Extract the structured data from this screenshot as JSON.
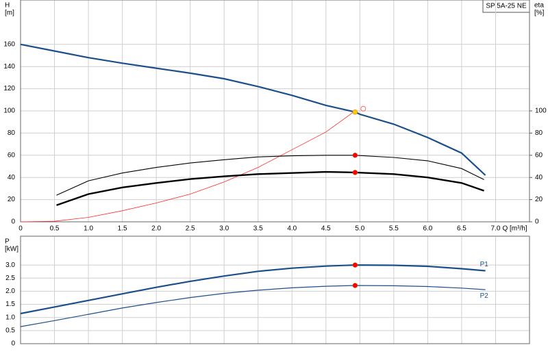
{
  "chart_data": [
    {
      "type": "line",
      "ylabel": [
        "H",
        "[m]"
      ],
      "y2label": [
        "eta",
        "[%]"
      ],
      "xlabel": "Q [m³/h]",
      "annotation": "SP 5A-25 NE",
      "xlim": [
        0,
        7.5
      ],
      "ylim": [
        0,
        200
      ],
      "y2lim": [
        0,
        200
      ],
      "xticks": [
        0,
        0.5,
        {
          "value": 1,
          "label": "1.0"
        },
        1.5,
        {
          "value": 2,
          "label": "2.0"
        },
        2.5,
        {
          "value": 3,
          "label": "3.0"
        },
        3.5,
        {
          "value": 4,
          "label": "4.0"
        },
        4.5,
        {
          "value": 5,
          "label": "5.0"
        },
        5.5,
        {
          "value": 6,
          "label": "6.0"
        },
        6.5,
        {
          "value": 7,
          "label": "7.0"
        }
      ],
      "yticks": [
        0,
        20,
        40,
        60,
        80,
        100,
        120,
        140,
        160
      ],
      "y2ticks": [
        0,
        20,
        40,
        60,
        80,
        100
      ],
      "grid": true,
      "series": [
        {
          "color": "#1a4f8b",
          "width": 2.2,
          "x": [
            0,
            0.5,
            1.0,
            1.5,
            2.0,
            2.5,
            3.0,
            3.5,
            4.0,
            4.5,
            4.93,
            5.0,
            5.5,
            6.0,
            6.5,
            6.85
          ],
          "values": [
            160,
            154,
            148,
            143,
            138.5,
            134,
            129,
            122,
            114,
            105,
            99,
            97,
            88,
            76,
            62,
            42
          ]
        },
        {
          "color": "#ff2a2a",
          "width": 0.8,
          "x": [
            0,
            0.5,
            1.0,
            1.5,
            2.0,
            2.5,
            3.0,
            3.5,
            4.0,
            4.5,
            4.93
          ],
          "values": [
            0,
            0.5,
            4,
            10,
            17,
            25,
            36,
            49,
            65,
            81,
            100
          ]
        },
        {
          "color": "#000000",
          "width": 1.1,
          "axis": "y2",
          "x": [
            0.53,
            1.0,
            1.5,
            2.0,
            2.5,
            3.0,
            3.5,
            4.0,
            4.5,
            4.93,
            5.5,
            6.0,
            6.5,
            6.83
          ],
          "values": [
            24,
            37,
            44,
            49,
            53,
            56,
            58.5,
            59.5,
            60,
            60,
            58,
            55,
            48,
            38
          ]
        },
        {
          "color": "#000000",
          "width": 2.4,
          "axis": "y2",
          "x": [
            0.53,
            1.0,
            1.5,
            2.0,
            2.5,
            3.0,
            3.5,
            4.0,
            4.5,
            4.93,
            5.5,
            6.0,
            6.5,
            6.83
          ],
          "values": [
            15,
            25,
            31,
            35,
            38.5,
            41,
            43,
            44,
            45,
            44.5,
            43,
            40,
            35,
            28
          ]
        }
      ],
      "points": [
        {
          "x": 4.93,
          "y": 99,
          "color": "#ffcc00"
        },
        {
          "x": 5.05,
          "y": 102,
          "color": "none"
        },
        {
          "x": 4.93,
          "y": 60,
          "color": "#ff0000",
          "axis": "y2"
        },
        {
          "x": 4.93,
          "y": 44.5,
          "color": "#ff0000",
          "axis": "y2"
        }
      ]
    },
    {
      "type": "line",
      "ylabel": [
        "P",
        "[kW]"
      ],
      "xlim": [
        0,
        7.5
      ],
      "ylim": [
        0,
        4.1
      ],
      "xticks": [
        0,
        0.5,
        1,
        1.5,
        2,
        2.5,
        3,
        3.5,
        4,
        4.5,
        5,
        5.5,
        6,
        6.5,
        7
      ],
      "yticks": [
        0,
        0.5,
        {
          "value": 1,
          "label": "1.0"
        },
        1.5,
        {
          "value": 2,
          "label": "2.0"
        },
        2.5,
        {
          "value": 3,
          "label": "3.0"
        }
      ],
      "grid": true,
      "series": [
        {
          "name": "P1",
          "color": "#1a4f8b",
          "width": 2.2,
          "x": [
            0,
            0.5,
            1.0,
            1.5,
            2.0,
            2.5,
            3.0,
            3.5,
            4.0,
            4.5,
            4.93,
            5.5,
            6.0,
            6.5,
            6.85
          ],
          "values": [
            1.15,
            1.4,
            1.65,
            1.9,
            2.15,
            2.38,
            2.58,
            2.76,
            2.88,
            2.96,
            3.0,
            2.99,
            2.95,
            2.86,
            2.78
          ]
        },
        {
          "name": "P2",
          "color": "#1a4f8b",
          "width": 1.2,
          "x": [
            0,
            0.5,
            1.0,
            1.5,
            2.0,
            2.5,
            3.0,
            3.5,
            4.0,
            4.5,
            4.93,
            5.5,
            6.0,
            6.5,
            6.85
          ],
          "values": [
            0.65,
            0.88,
            1.12,
            1.36,
            1.57,
            1.76,
            1.92,
            2.04,
            2.13,
            2.19,
            2.22,
            2.21,
            2.18,
            2.12,
            2.06
          ]
        }
      ],
      "points": [
        {
          "x": 4.93,
          "y": 3.0,
          "color": "#ff0000"
        },
        {
          "x": 4.93,
          "y": 2.22,
          "color": "#ff0000"
        }
      ]
    }
  ]
}
